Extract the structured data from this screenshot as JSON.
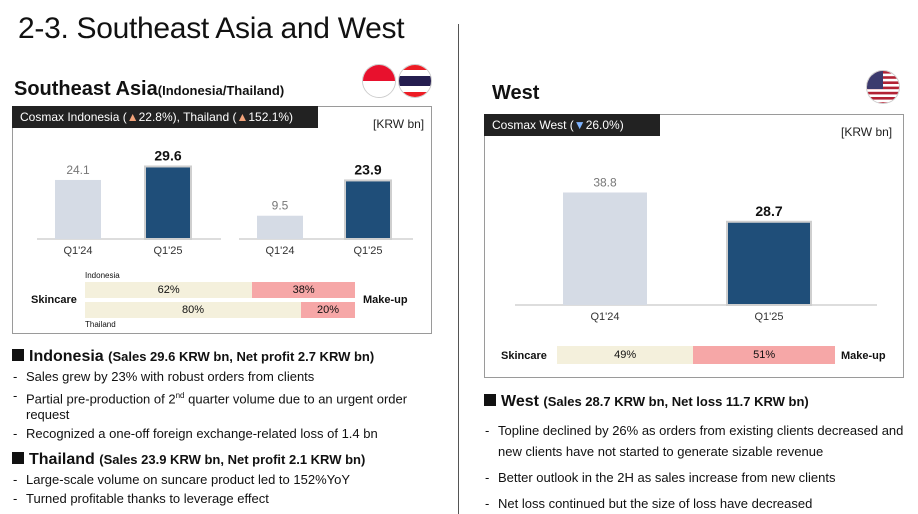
{
  "title": "2-3. Southeast Asia and West",
  "sea": {
    "title": "Southeast Asia",
    "title_sub": "(Indonesia/Thailand)",
    "header_pre": "Cosmax Indonesia (",
    "header_id_mark": "▲",
    "header_id_val": "22.8%",
    "header_mid": "), Thailand (",
    "header_th_mark": "▲",
    "header_th_val": "152.1%",
    "header_post": ")",
    "unit": "[KRW bn]",
    "mix": {
      "left_label": "Skincare",
      "right_label": "Make-up",
      "top_country": "Indonesia",
      "bottom_country": "Thailand",
      "indonesia_skin": "62%",
      "indonesia_make": "38%",
      "thailand_skin": "80%",
      "thailand_make": "20%"
    }
  },
  "west": {
    "title": "West",
    "header_pre": "Cosmax West (",
    "header_mark": "▼",
    "header_val": "26.0%",
    "header_post": ")",
    "unit": "[KRW bn]",
    "mix": {
      "left_label": "Skincare",
      "right_label": "Make-up",
      "skin": "49%",
      "make": "51%"
    }
  },
  "chart_data": [
    {
      "type": "bar",
      "categories": [
        "Q1'24",
        "Q1'25"
      ],
      "series": [
        {
          "name": "Indonesia",
          "values": [
            24.1,
            29.6
          ]
        }
      ],
      "title": "",
      "xlabel": "",
      "ylabel": "[KRW bn]"
    },
    {
      "type": "bar",
      "categories": [
        "Q1'24",
        "Q1'25"
      ],
      "series": [
        {
          "name": "Thailand",
          "values": [
            9.5,
            23.9
          ]
        }
      ],
      "title": "",
      "xlabel": "",
      "ylabel": "[KRW bn]"
    },
    {
      "type": "bar",
      "categories": [
        "Q1'24",
        "Q1'25"
      ],
      "series": [
        {
          "name": "West",
          "values": [
            38.8,
            28.7
          ]
        }
      ],
      "title": "",
      "xlabel": "",
      "ylabel": "[KRW bn]"
    }
  ],
  "colors": {
    "prev_bar": "#d5dbe5",
    "curr_bar": "#1f4e79",
    "skin": "#f4f0dc",
    "make": "#f6a7a7"
  },
  "indonesia": {
    "name": "Indonesia",
    "detail": "(Sales 29.6 KRW bn, Net profit 2.7 KRW bn)",
    "b1": "Sales grew by 23% with robust orders from clients",
    "b2_pre": "Partial pre-production of 2",
    "b2_sup": "nd",
    "b2_post": " quarter volume due to an urgent order request",
    "b3": "Recognized a one-off foreign exchange-related loss of 1.4 bn"
  },
  "thailand": {
    "name": "Thailand",
    "detail": "(Sales 23.9 KRW bn, Net profit 2.1 KRW bn)",
    "b1": "Large-scale volume on suncare product led to 152%YoY",
    "b2": "Turned profitable thanks to leverage effect"
  },
  "west_text": {
    "name": "West",
    "detail": "(Sales 28.7 KRW bn, Net loss 11.7 KRW bn)",
    "b1": "Topline declined by 26% as orders from existing clients decreased and new clients have not started to generate sizable revenue",
    "b2": "Better outlook in the 2H as sales increase from new clients",
    "b3": "Net loss continued but the size of loss have decreased"
  }
}
